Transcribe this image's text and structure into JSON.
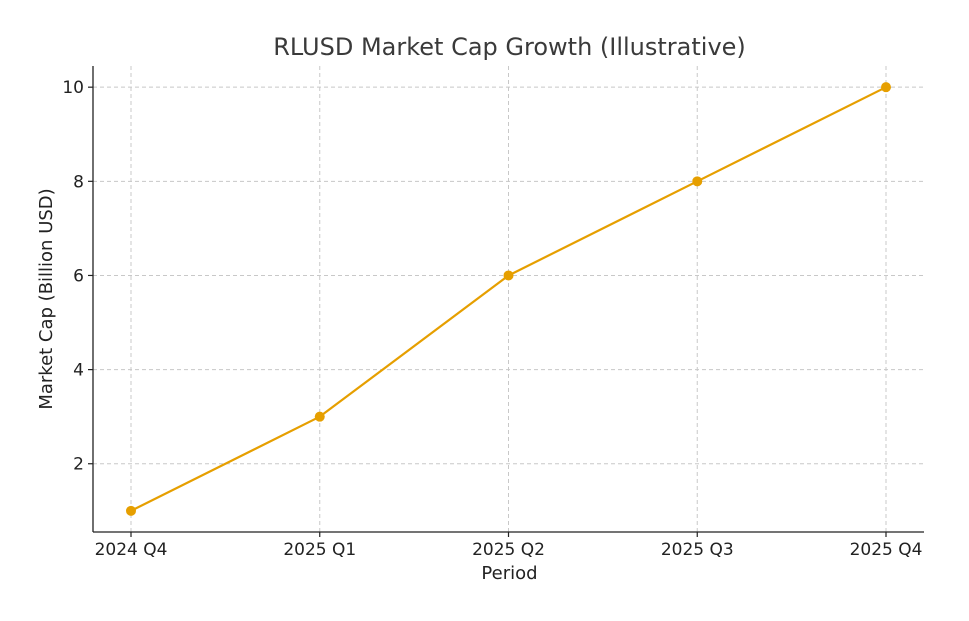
{
  "chart_data": {
    "type": "line",
    "title": "RLUSD Market Cap Growth (Illustrative)",
    "xlabel": "Period",
    "ylabel": "Market Cap (Billion USD)",
    "categories": [
      "2024 Q4",
      "2025 Q1",
      "2025 Q2",
      "2025 Q3",
      "2025 Q4"
    ],
    "series": [
      {
        "values": [
          1,
          3,
          6,
          8,
          10
        ],
        "color": "#e69f00",
        "marker": "circle"
      }
    ],
    "yticks": [
      2,
      4,
      6,
      8,
      10
    ],
    "ylim": [
      0.55,
      10.45
    ],
    "grid": true,
    "legend": "none"
  }
}
